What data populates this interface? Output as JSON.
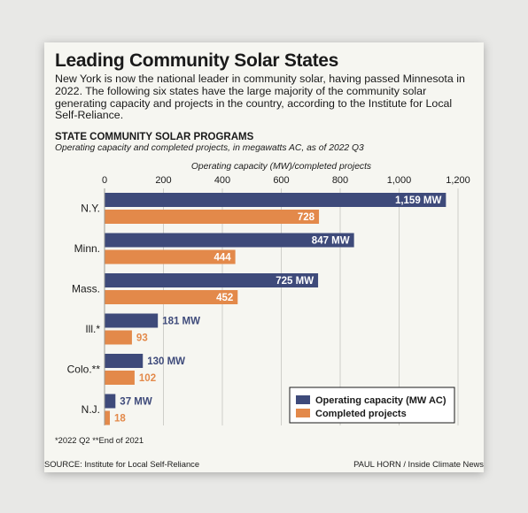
{
  "header": {
    "title": "Leading Community Solar States",
    "intro": "New York is now the national leader in community solar, having passed Minnesota in 2022. The following six states have the large majority of the community solar generating capacity and projects in the country, according to the Institute for Local Self-Reliance."
  },
  "chart_data": {
    "type": "bar",
    "orientation": "horizontal",
    "title": "STATE COMMUNITY SOLAR PROGRAMS",
    "subtitle": "Operating capacity and completed projects, in megawatts AC, as of 2022 Q3",
    "xlabel": "Operating capacity (MW)/completed projects",
    "xlim": [
      0,
      1200
    ],
    "xticks": [
      0,
      200,
      400,
      600,
      800,
      1000,
      1200
    ],
    "xtick_labels": [
      "0",
      "200",
      "400",
      "600",
      "800",
      "1,000",
      "1,200"
    ],
    "grid": true,
    "legend_position": "bottom-right",
    "categories": [
      "N.Y.",
      "Minn.",
      "Mass.",
      "Ill.*",
      "Colo.**",
      "N.J."
    ],
    "series": [
      {
        "name": "Operating capacity (MW AC)",
        "color": "#3e4a7a",
        "values": [
          1159,
          847,
          725,
          181,
          130,
          37
        ],
        "labels": [
          "1,159 MW",
          "847 MW",
          "725 MW",
          "181 MW",
          "130 MW",
          "37 MW"
        ]
      },
      {
        "name": "Completed projects",
        "color": "#e3894a",
        "values": [
          728,
          444,
          452,
          93,
          102,
          18
        ],
        "labels": [
          "728",
          "444",
          "452",
          "93",
          "102",
          "18"
        ]
      }
    ]
  },
  "footer": {
    "footnote": "*2022 Q2    **End of 2021",
    "source": "SOURCE: Institute for Local Self-Reliance",
    "credit": "PAUL HORN / Inside Climate News"
  }
}
